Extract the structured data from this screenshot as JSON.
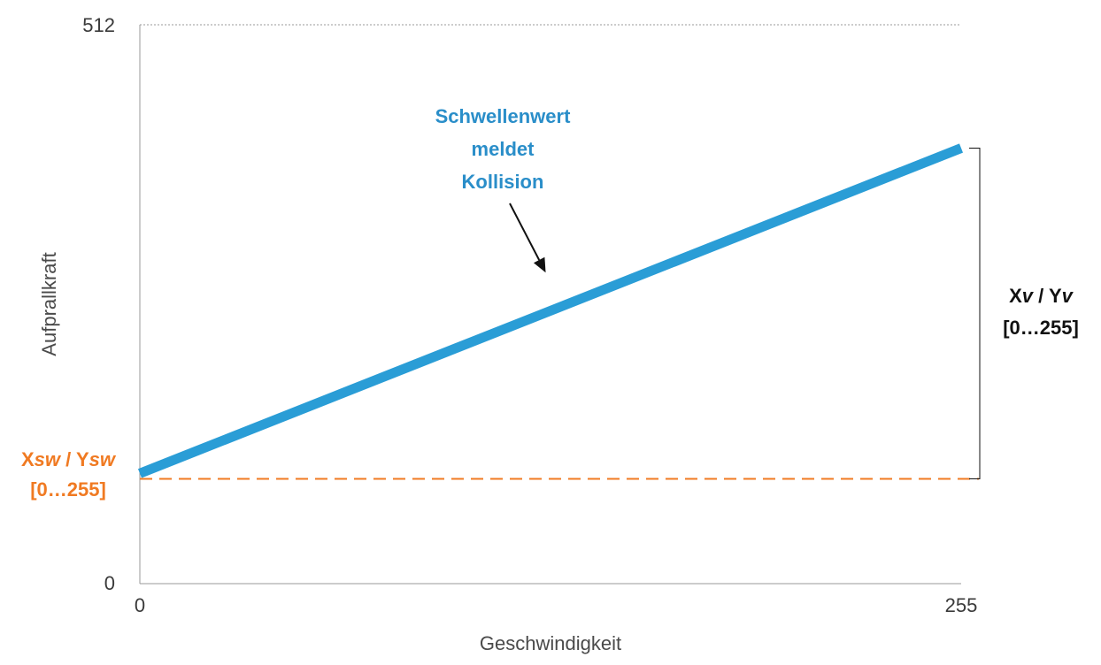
{
  "chart_data": {
    "type": "line",
    "xlabel": "Geschwindigkeit",
    "ylabel": "Aufprallkraft",
    "xlim": [
      0,
      255
    ],
    "ylim": [
      0,
      512
    ],
    "xticks": [
      "0",
      "255"
    ],
    "yticks": [
      "0",
      "512"
    ],
    "series": [
      {
        "name": "Schwellenwert",
        "x": [
          0,
          255
        ],
        "y": [
          101,
          399
        ],
        "color": "#2a9dd6"
      }
    ],
    "threshold": {
      "y": 96,
      "color": "#f07a22"
    },
    "annotation": {
      "lines": [
        "Schwellenwert",
        "meldet",
        "Kollision"
      ],
      "color": "#2a8ec9",
      "arrow_to": {
        "x": 126,
        "y": 285
      }
    },
    "bracket_label": {
      "lines": [
        [
          {
            "t": "X",
            "italic": false
          },
          {
            "t": "v",
            "italic": true
          },
          {
            "t": " / Y",
            "italic": false
          },
          {
            "t": "v",
            "italic": true
          }
        ],
        [
          {
            "t": "[0…255]",
            "italic": false
          }
        ]
      ],
      "color": "#111111"
    },
    "threshold_label": {
      "lines": [
        [
          {
            "t": "X",
            "italic": false
          },
          {
            "t": "sw",
            "italic": true
          },
          {
            "t": " / Y",
            "italic": false
          },
          {
            "t": "sw",
            "italic": true
          }
        ],
        [
          {
            "t": "[0…255]",
            "italic": false
          }
        ]
      ],
      "color": "#f07a22"
    },
    "grid_top": true
  }
}
